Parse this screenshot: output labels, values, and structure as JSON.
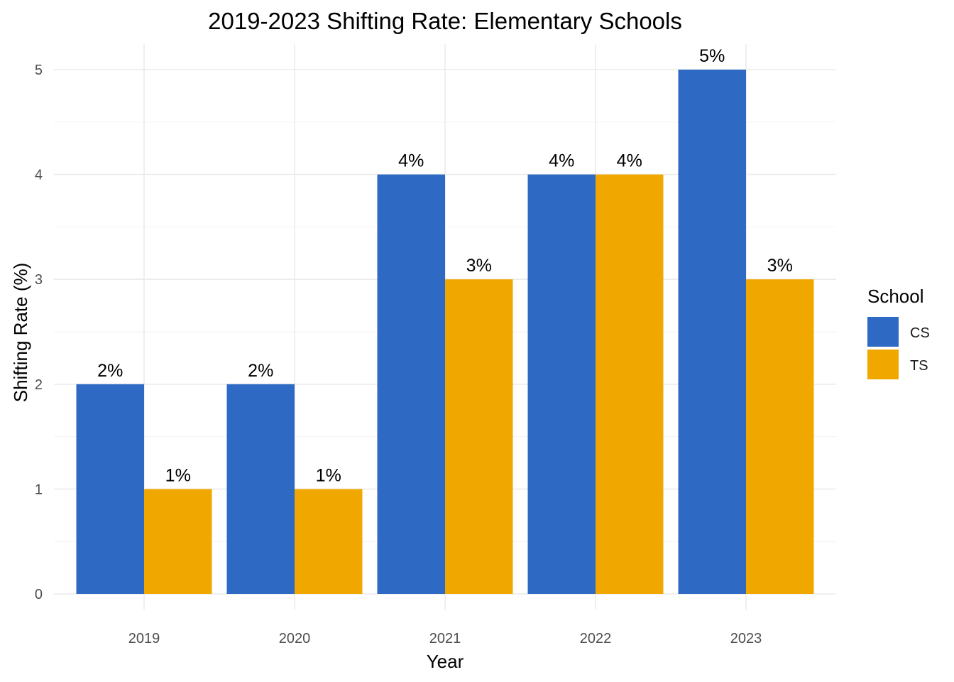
{
  "chart_data": {
    "type": "bar",
    "title": "2019-2023 Shifting Rate: Elementary Schools",
    "xlabel": "Year",
    "ylabel": "Shifting Rate (%)",
    "categories": [
      "2019",
      "2020",
      "2021",
      "2022",
      "2023"
    ],
    "ylim": [
      0,
      5
    ],
    "yticks": [
      0,
      1,
      2,
      3,
      4,
      5
    ],
    "grid": true,
    "legend": {
      "title": "School",
      "placement": "right"
    },
    "series": [
      {
        "name": "CS",
        "color": "#2e69c4",
        "values": [
          2,
          2,
          4,
          4,
          5
        ],
        "labels": [
          "2%",
          "2%",
          "4%",
          "4%",
          "5%"
        ]
      },
      {
        "name": "TS",
        "color": "#f0a800",
        "values": [
          1,
          1,
          3,
          4,
          3
        ],
        "labels": [
          "1%",
          "1%",
          "3%",
          "4%",
          "3%"
        ]
      }
    ]
  }
}
